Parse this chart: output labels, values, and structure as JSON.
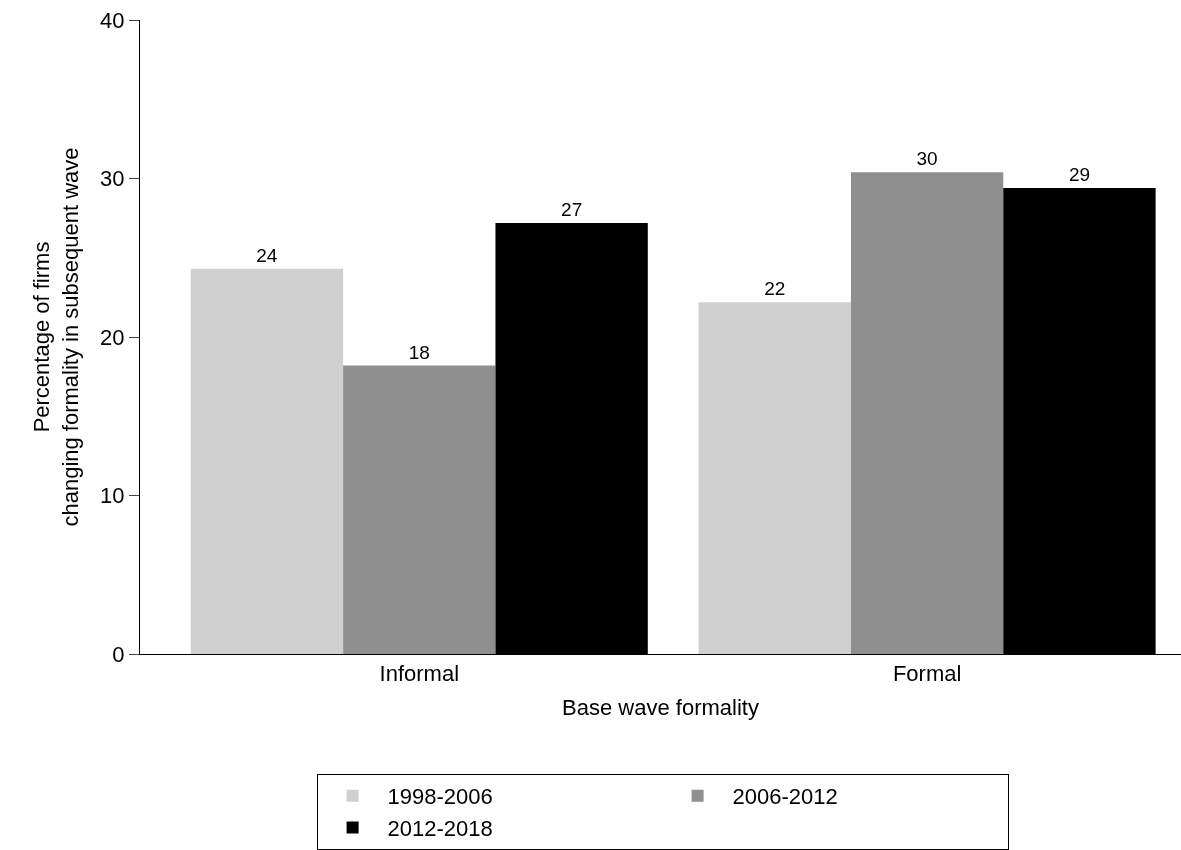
{
  "chart_data": {
    "type": "bar",
    "xlabel": "Base wave formality",
    "ylabel": "Percentage of firms\nchanging formality in subsequent wave",
    "categories": [
      "Informal",
      "Formal"
    ],
    "series": [
      {
        "name": "1998-2006",
        "color": "#d0d0d0",
        "values": [
          24.3,
          22.2
        ],
        "value_labels": [
          "24",
          "22"
        ]
      },
      {
        "name": "2006-2012",
        "color": "#8f8f8f",
        "values": [
          18.2,
          30.4
        ],
        "value_labels": [
          "18",
          "30"
        ]
      },
      {
        "name": "2012-2018",
        "color": "#000000",
        "values": [
          27.2,
          29.4
        ],
        "value_labels": [
          "27",
          "29"
        ]
      }
    ],
    "ylim": [
      0,
      40
    ],
    "yticks": [
      0,
      10,
      20,
      30,
      40
    ],
    "legend": "bottom"
  }
}
